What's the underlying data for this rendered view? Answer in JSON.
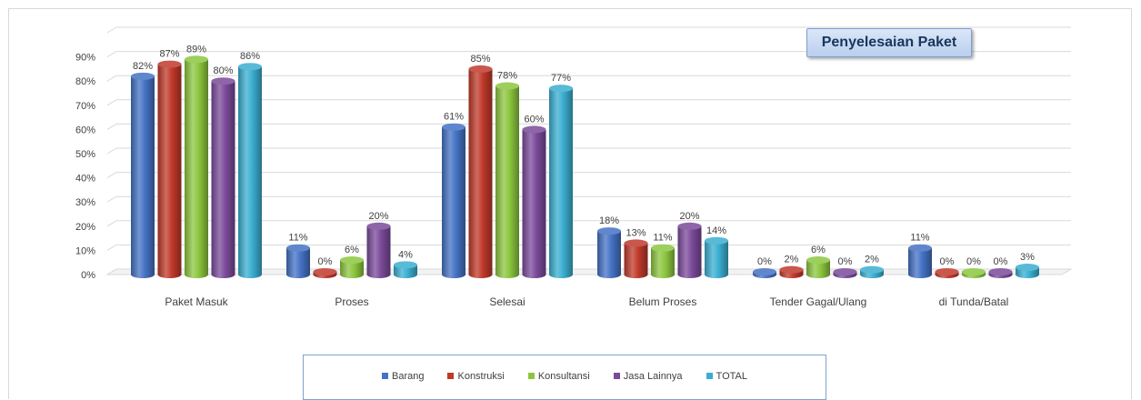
{
  "chart_data": {
    "type": "bar",
    "title": "Penyelesaian Paket",
    "categories": [
      "Paket Masuk",
      "Proses",
      "Selesai",
      "Belum Proses",
      "Tender Gagal/Ulang",
      "di Tunda/Batal"
    ],
    "series": [
      {
        "name": "Barang",
        "color": "#4472c4",
        "values": [
          82,
          11,
          61,
          18,
          0,
          11
        ]
      },
      {
        "name": "Konstruksi",
        "color": "#c0392b",
        "values": [
          87,
          0,
          85,
          13,
          2,
          0
        ]
      },
      {
        "name": "Konsultansi",
        "color": "#8cc63f",
        "values": [
          89,
          6,
          78,
          11,
          6,
          0
        ]
      },
      {
        "name": "Jasa Lainnya",
        "color": "#7b4a9a",
        "values": [
          80,
          20,
          60,
          20,
          0,
          0
        ]
      },
      {
        "name": "TOTAL",
        "color": "#3aaed0",
        "values": [
          86,
          4,
          77,
          14,
          2,
          3
        ]
      }
    ],
    "yticks": [
      "0%",
      "10%",
      "20%",
      "30%",
      "40%",
      "50%",
      "60%",
      "70%",
      "80%",
      "90%"
    ],
    "ylim": [
      0,
      100
    ],
    "unit": "%",
    "grid": true,
    "legend_position": "bottom"
  }
}
